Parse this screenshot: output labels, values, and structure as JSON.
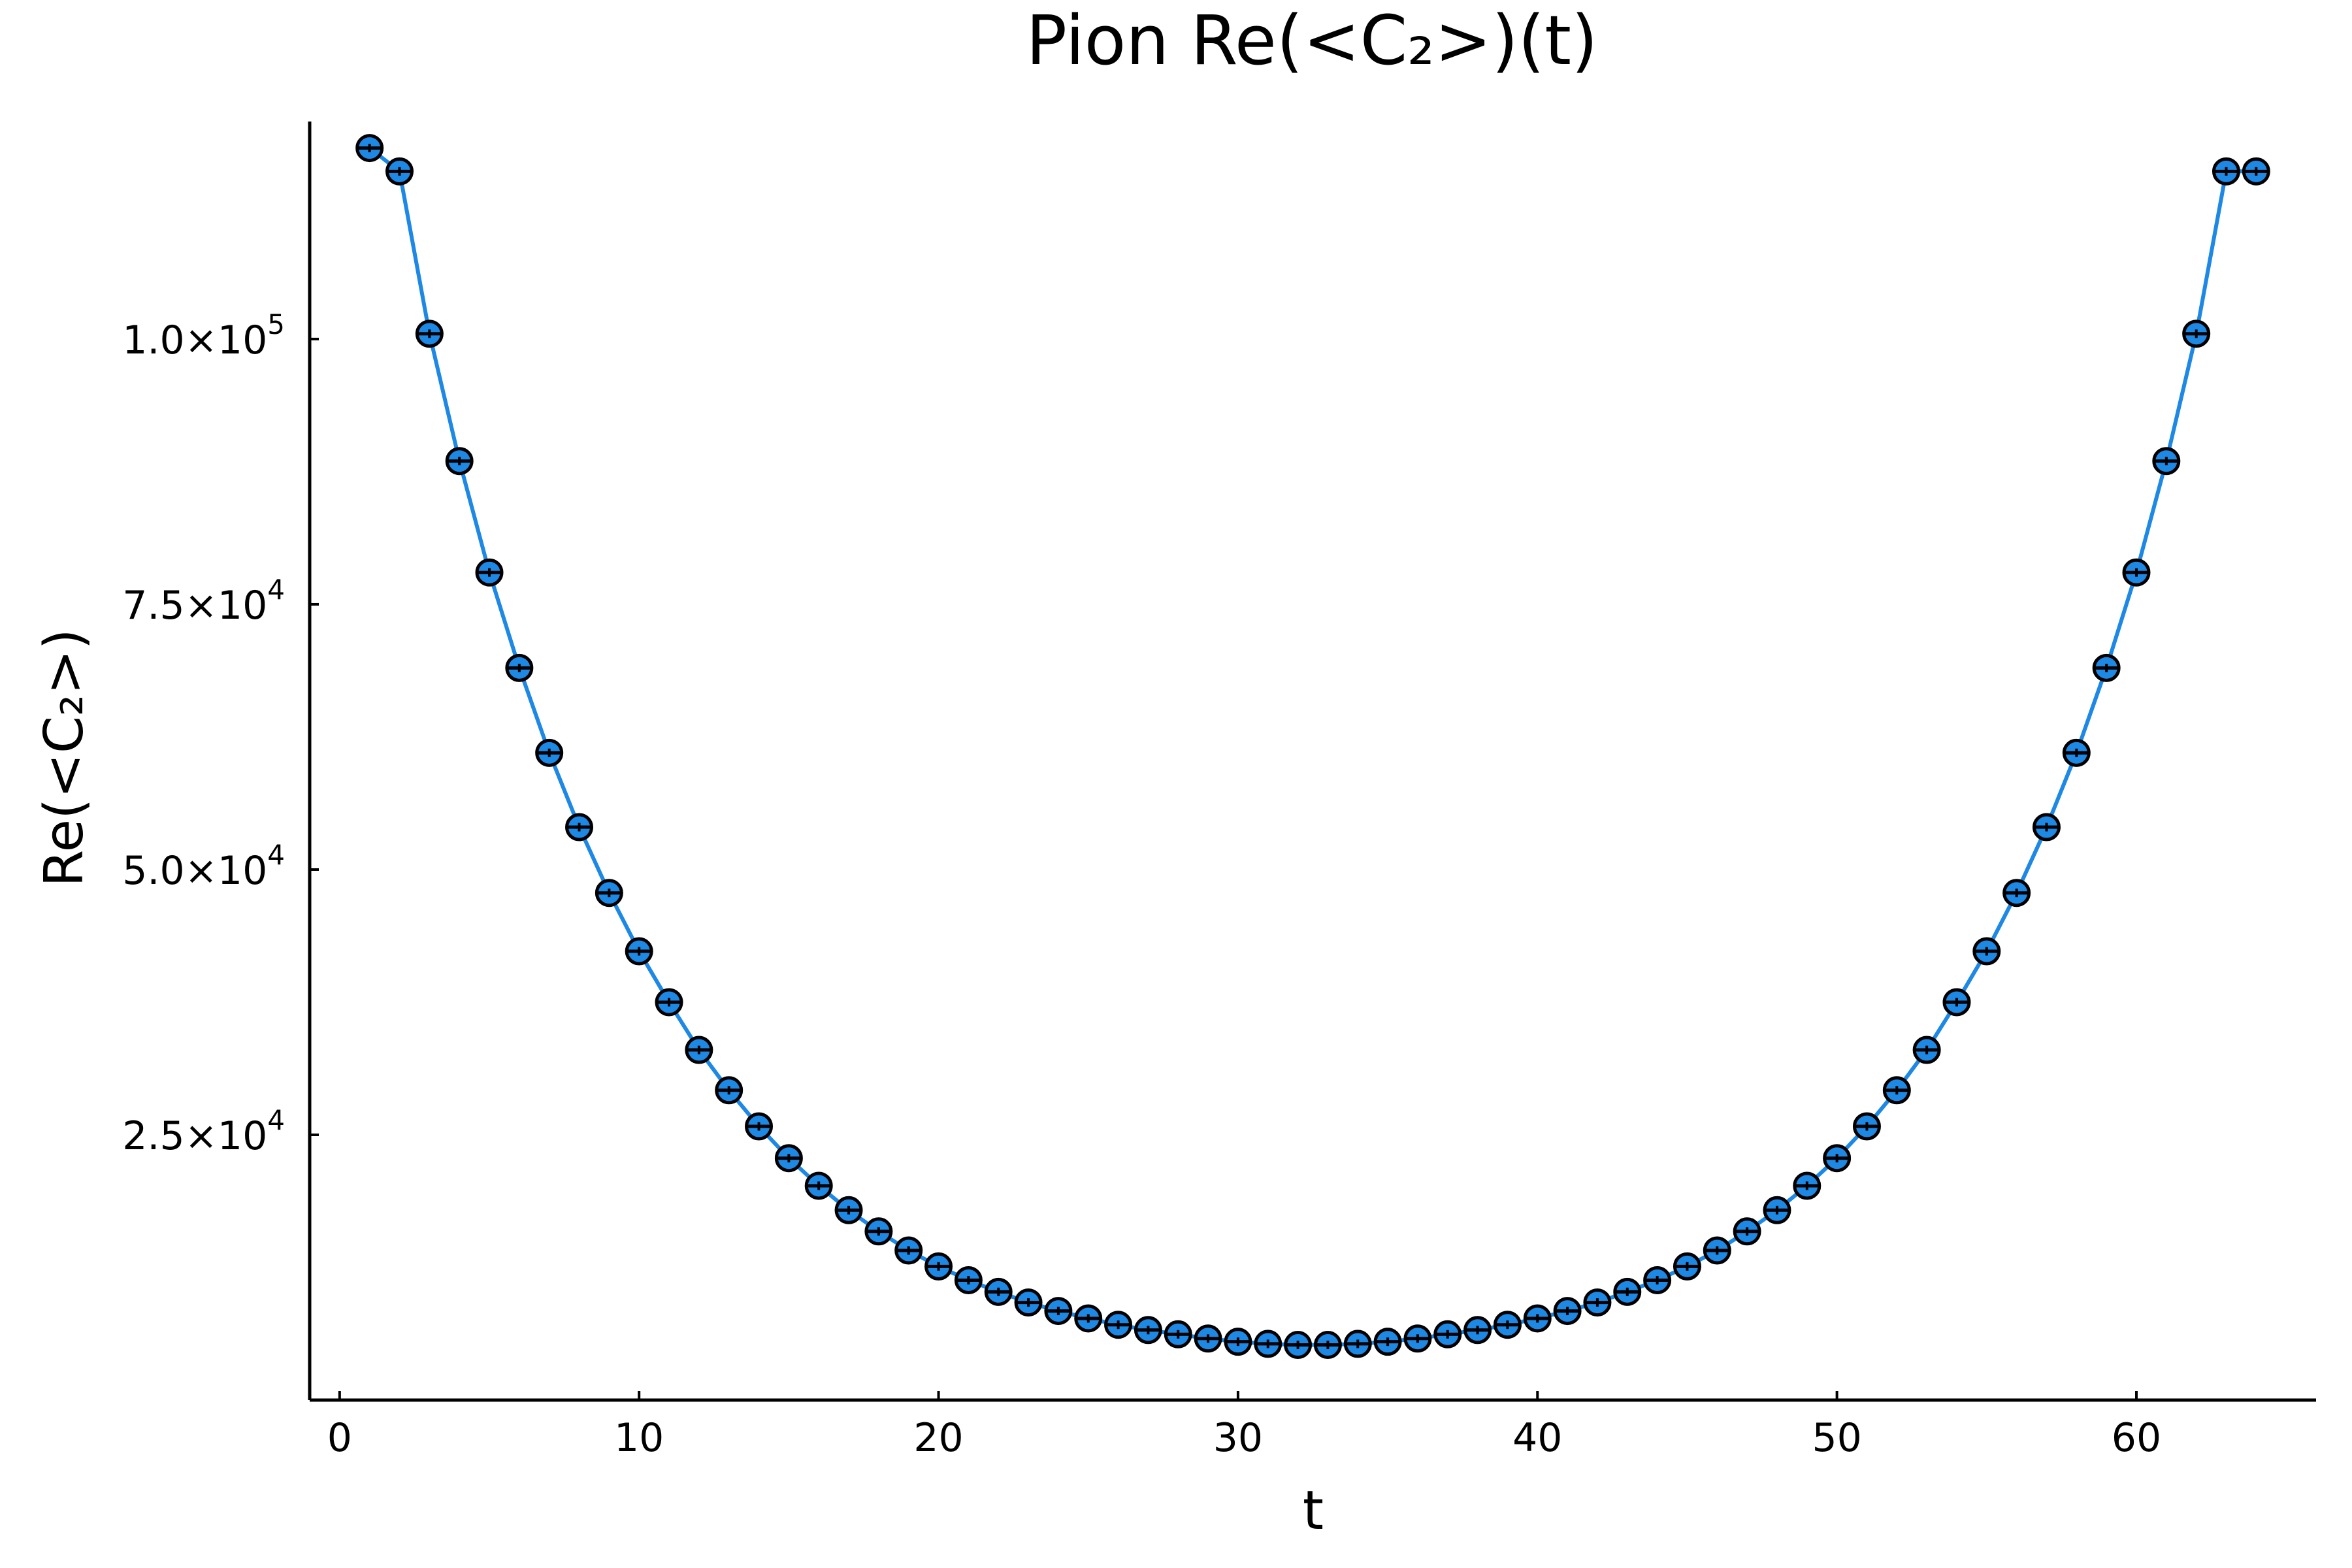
{
  "chart_data": {
    "type": "scatter",
    "title": "Pion Re(<C₂>)(t)",
    "xlabel": "t",
    "ylabel": "Re(<C₂>)",
    "xlim": [
      -1,
      66
    ],
    "ylim": [
      0,
      120500
    ],
    "grid": false,
    "legend": "none",
    "line_color": "#1e88e5",
    "marker_fill": "#1e88e5",
    "marker_edge": "#000000",
    "x_ticks": [
      {
        "value": 0,
        "label": "0"
      },
      {
        "value": 10,
        "label": "10"
      },
      {
        "value": 20,
        "label": "20"
      },
      {
        "value": 30,
        "label": "30"
      },
      {
        "value": 40,
        "label": "40"
      },
      {
        "value": 50,
        "label": "50"
      },
      {
        "value": 60,
        "label": "60"
      }
    ],
    "y_ticks": [
      {
        "value": 25000,
        "mantissa": "2.5×10",
        "exponent": "4"
      },
      {
        "value": 50000,
        "mantissa": "5.0×10",
        "exponent": "4"
      },
      {
        "value": 75000,
        "mantissa": "7.5×10",
        "exponent": "4"
      },
      {
        "value": 100000,
        "mantissa": "1.0×10",
        "exponent": "5"
      }
    ],
    "series": [
      {
        "x": [
          1,
          2,
          3,
          4,
          5,
          6,
          7,
          8,
          9,
          10,
          11,
          12,
          13,
          14,
          15,
          16,
          17,
          18,
          19,
          20,
          21,
          22,
          23,
          24,
          25,
          26,
          27,
          28,
          29,
          30,
          31,
          32,
          33,
          34,
          35,
          36,
          37,
          38,
          39,
          40,
          41,
          42,
          43,
          44,
          45,
          46,
          47,
          48,
          49,
          50,
          51,
          52,
          53,
          54,
          55,
          56,
          57,
          58,
          59,
          60,
          61,
          62,
          63,
          64
        ],
        "y": [
          118000,
          115800,
          100500,
          88500,
          78000,
          69000,
          61000,
          54000,
          47800,
          42300,
          37500,
          33000,
          29200,
          25800,
          22800,
          20200,
          17900,
          15900,
          14100,
          12600,
          11300,
          10200,
          9200,
          8400,
          7700,
          7100,
          6600,
          6200,
          5800,
          5500,
          5300,
          5200,
          5200,
          5300,
          5500,
          5800,
          6200,
          6600,
          7100,
          7700,
          8400,
          9200,
          10200,
          11300,
          12600,
          14100,
          15900,
          17900,
          20200,
          22800,
          25800,
          29200,
          33000,
          37500,
          42300,
          47800,
          54000,
          61000,
          69000,
          78000,
          88500,
          100500,
          115800,
          115800
        ],
        "y_err": [
          400,
          400,
          400,
          400,
          400,
          400,
          400,
          400,
          400,
          400,
          400,
          400,
          400,
          400,
          400,
          400,
          400,
          400,
          400,
          400,
          400,
          400,
          400,
          400,
          400,
          400,
          400,
          400,
          400,
          400,
          400,
          400,
          400,
          400,
          400,
          400,
          400,
          400,
          400,
          400,
          400,
          400,
          400,
          400,
          400,
          400,
          400,
          400,
          400,
          400,
          400,
          400,
          400,
          400,
          400,
          400,
          400,
          400,
          400,
          400,
          400,
          400,
          400,
          400
        ]
      }
    ]
  }
}
